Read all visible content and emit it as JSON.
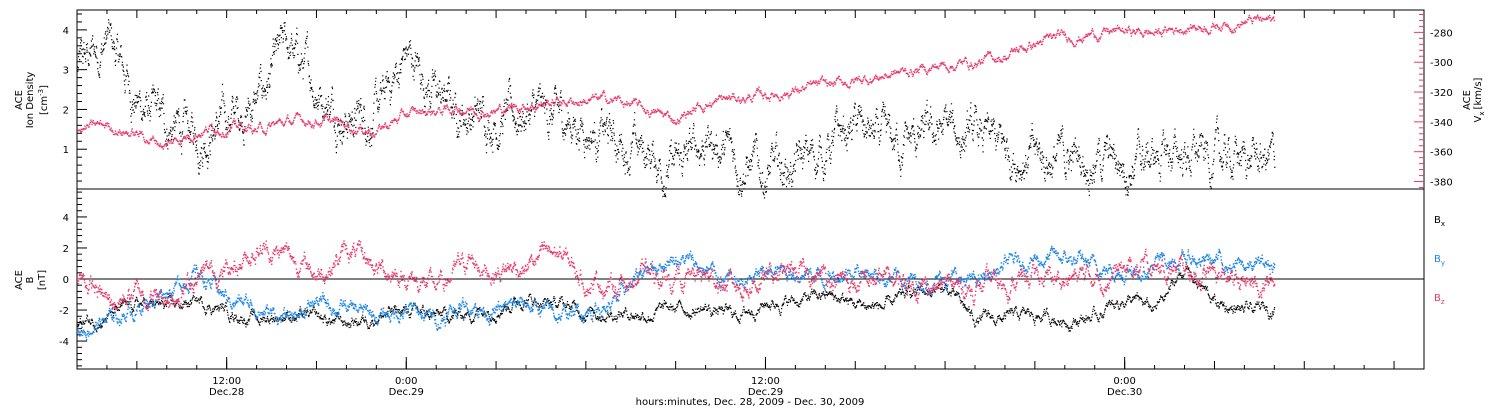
{
  "colors": {
    "axis": "#000000",
    "density": "#000000",
    "velocity": "#e8396a",
    "bx": "#000000",
    "by": "#1f86e6",
    "bz": "#e8396a"
  },
  "chart_data": [
    {
      "type": "scatter",
      "panel": "top",
      "left_axis": {
        "label_lines": [
          "ACE",
          "Ion Density"
        ],
        "units": "[cm^-3]",
        "ticks": [
          "1",
          "2",
          "3",
          "4"
        ],
        "range": [
          0,
          4.5
        ]
      },
      "right_axis": {
        "label_lines": [
          "ACE",
          "V_x [km/s]"
        ],
        "ticks": [
          "-280",
          "-300",
          "-320",
          "-340",
          "-360",
          "-380"
        ],
        "range": [
          -385,
          -265
        ],
        "color": "#e8396a"
      },
      "series": [
        {
          "key": "density",
          "axis": "left",
          "color": "#000000",
          "x_hours": [
            0,
            2,
            4,
            6,
            8,
            10,
            12,
            14,
            16,
            18,
            20,
            22,
            24,
            26,
            28,
            30,
            32,
            34,
            36,
            38,
            40,
            42,
            44,
            46,
            48,
            50,
            52,
            54,
            56,
            58,
            60,
            62,
            64,
            66,
            68,
            70,
            72,
            74,
            76,
            78,
            80
          ],
          "y": [
            3.0,
            3.8,
            2.2,
            1.6,
            1.3,
            1.8,
            2.2,
            3.6,
            2.6,
            1.8,
            1.9,
            3.4,
            2.4,
            1.9,
            1.8,
            1.9,
            1.8,
            1.6,
            1.2,
            0.9,
            0.5,
            1.3,
            0.8,
            0.4,
            0.6,
            1.0,
            1.6,
            1.1,
            1.2,
            1.5,
            1.3,
            1.0,
            0.8,
            0.8,
            0.8,
            0.7,
            0.8,
            0.9,
            0.8,
            0.8,
            0.7
          ]
        },
        {
          "key": "velocity",
          "axis": "right",
          "color": "#e8396a",
          "x_hours": [
            0,
            2,
            4,
            6,
            8,
            10,
            12,
            14,
            16,
            18,
            20,
            22,
            24,
            26,
            28,
            30,
            32,
            34,
            36,
            38,
            40,
            42,
            44,
            46,
            48,
            50,
            52,
            54,
            56,
            58,
            60,
            62,
            64,
            66,
            68,
            70,
            72,
            74,
            76,
            78,
            80
          ],
          "y": [
            -345,
            -342,
            -348,
            -355,
            -345,
            -342,
            -345,
            -340,
            -338,
            -342,
            -345,
            -335,
            -332,
            -330,
            -332,
            -328,
            -326,
            -325,
            -325,
            -332,
            -338,
            -327,
            -324,
            -322,
            -318,
            -316,
            -312,
            -308,
            -305,
            -301,
            -300,
            -295,
            -287,
            -283,
            -280,
            -279,
            -280,
            -276,
            -274,
            -272,
            -272
          ]
        }
      ]
    },
    {
      "type": "scatter",
      "panel": "bottom",
      "left_axis": {
        "label_lines": [
          "ACE",
          "B"
        ],
        "units": "[nT]",
        "ticks": [
          "-4",
          "-2",
          "0",
          "2",
          "4"
        ],
        "range": [
          -5.8,
          5.8
        ]
      },
      "legend": [
        "B_x",
        "B_y",
        "B_z"
      ],
      "series": [
        {
          "key": "bx",
          "name": "B_x",
          "color": "#000000",
          "x_hours": [
            0,
            2,
            4,
            6,
            8,
            10,
            12,
            14,
            16,
            18,
            20,
            22,
            24,
            26,
            28,
            30,
            32,
            34,
            36,
            38,
            40,
            42,
            44,
            46,
            48,
            50,
            52,
            54,
            56,
            58,
            60,
            62,
            64,
            66,
            68,
            70,
            72,
            74,
            76,
            78,
            80
          ],
          "y": [
            -2.8,
            -2.4,
            -1.6,
            -1.8,
            -1.4,
            -2.0,
            -2.6,
            -2.2,
            -2.6,
            -2.8,
            -2.3,
            -2.0,
            -2.4,
            -2.2,
            -1.7,
            -1.2,
            -1.6,
            -2.0,
            -2.1,
            -2.2,
            -1.9,
            -1.9,
            -2.3,
            -1.5,
            -1.4,
            -1.0,
            -1.6,
            -1.8,
            -0.8,
            -0.6,
            -2.6,
            -2.5,
            -2.3,
            -2.6,
            -2.4,
            -1.2,
            -2.0,
            0.7,
            -1.5,
            -2.1,
            -1.8
          ]
        },
        {
          "key": "by",
          "name": "B_y",
          "color": "#1f86e6",
          "x_hours": [
            0,
            2,
            4,
            6,
            8,
            10,
            12,
            14,
            16,
            18,
            20,
            22,
            24,
            26,
            28,
            30,
            32,
            34,
            36,
            38,
            40,
            42,
            44,
            46,
            48,
            50,
            52,
            54,
            56,
            58,
            60,
            62,
            64,
            66,
            68,
            70,
            72,
            74,
            76,
            78,
            80
          ],
          "y": [
            -3.2,
            -2.6,
            -1.8,
            -0.6,
            0.4,
            -1.2,
            -1.8,
            -2.6,
            -1.4,
            -1.9,
            -2.4,
            -2.0,
            -2.5,
            -1.5,
            -2.1,
            -1.6,
            -2.3,
            -2.0,
            -1.5,
            0.8,
            1.5,
            0.6,
            -0.3,
            0.3,
            0.6,
            0.2,
            0.8,
            0.2,
            -0.2,
            0.2,
            -0.3,
            0.9,
            1.4,
            1.3,
            0.8,
            0.6,
            1.0,
            1.3,
            1.2,
            0.8,
            1.0
          ]
        },
        {
          "key": "bz",
          "name": "B_z",
          "color": "#e8396a",
          "x_hours": [
            0,
            2,
            4,
            6,
            8,
            10,
            12,
            14,
            16,
            18,
            20,
            22,
            24,
            26,
            28,
            30,
            32,
            34,
            36,
            38,
            40,
            42,
            44,
            46,
            48,
            50,
            52,
            54,
            56,
            58,
            60,
            62,
            64,
            66,
            68,
            70,
            72,
            74,
            76,
            78,
            80
          ],
          "y": [
            0.4,
            -1.5,
            -0.8,
            -1.2,
            0.2,
            0.6,
            2.1,
            1.6,
            0.4,
            1.8,
            0.8,
            0.2,
            -0.6,
            1.2,
            0.6,
            0.9,
            1.8,
            0.0,
            -0.4,
            0.3,
            0.0,
            0.2,
            -0.5,
            0.1,
            0.4,
            0.2,
            -0.4,
            0.0,
            -0.3,
            -0.5,
            -0.6,
            -0.2,
            0.2,
            0.0,
            0.3,
            0.6,
            0.8,
            0.6,
            0.2,
            -0.3,
            -0.2
          ]
        }
      ]
    }
  ],
  "x_axis": {
    "start_hour_offset": 0,
    "range_hours": [
      0,
      90
    ],
    "major_ticks": [
      {
        "hour": 10,
        "time": "12:00",
        "date": "Dec.28"
      },
      {
        "hour": 22,
        "time": "0:00",
        "date": "Dec.29"
      },
      {
        "hour": 46,
        "time": "12:00",
        "date": "Dec.29"
      },
      {
        "hour": 70,
        "time": "0:00",
        "date": "Dec.30"
      }
    ],
    "title": "hours:minutes, Dec. 28, 2009 - Dec. 30, 2009"
  },
  "labels": {
    "top_left": [
      "ACE",
      "Ion Density",
      "[cm",
      "-3",
      "]"
    ],
    "top_right": [
      "ACE",
      "V",
      "x",
      "[km/s]"
    ],
    "bottom_left": [
      "ACE",
      "B",
      "[nT]"
    ],
    "legend_bx": [
      "B",
      "x"
    ],
    "legend_by": [
      "B",
      "y"
    ],
    "legend_bz": [
      "B",
      "z"
    ]
  }
}
